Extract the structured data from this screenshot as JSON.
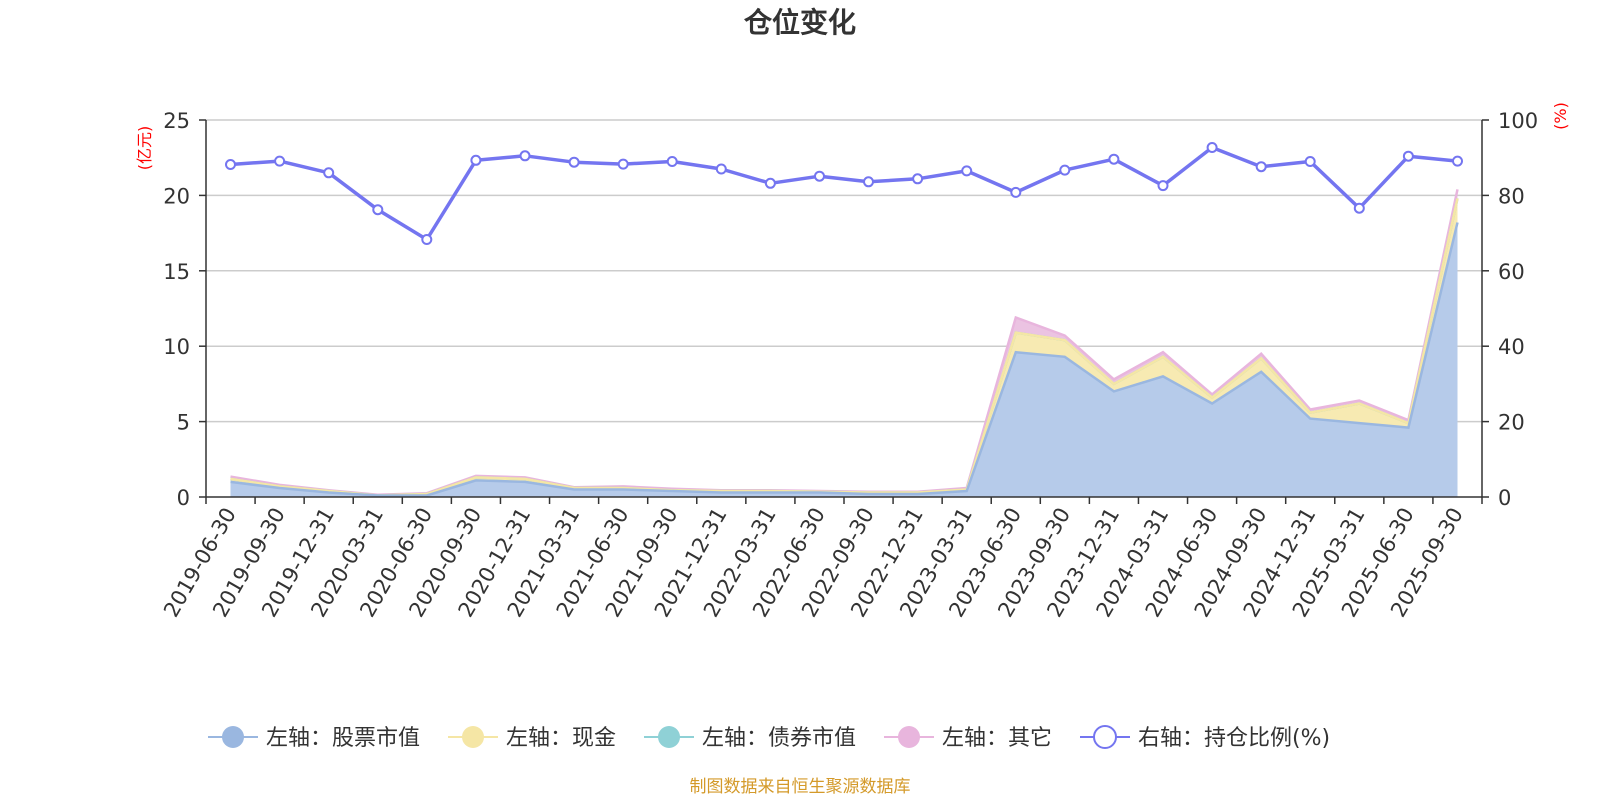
{
  "chart_data": {
    "type": "area",
    "title": "仓位变化",
    "left_unit": "(亿元)",
    "right_unit": "(%)",
    "left_ylim": [
      0,
      25
    ],
    "left_ticks": [
      "0",
      "5",
      "10",
      "15",
      "20",
      "25"
    ],
    "right_ylim": [
      0,
      100
    ],
    "right_ticks": [
      "0",
      "20",
      "40",
      "60",
      "80",
      "100"
    ],
    "grid": true,
    "legend_position": "bottom",
    "categories": [
      "2019-06-30",
      "2019-09-30",
      "2019-12-31",
      "2020-03-31",
      "2020-06-30",
      "2020-09-30",
      "2020-12-31",
      "2021-03-31",
      "2021-06-30",
      "2021-09-30",
      "2021-12-31",
      "2022-03-31",
      "2022-06-30",
      "2022-09-30",
      "2022-12-31",
      "2023-03-31",
      "2023-06-30",
      "2023-09-30",
      "2023-12-31",
      "2024-03-31",
      "2024-06-30",
      "2024-09-30",
      "2024-12-31",
      "2025-03-31",
      "2025-06-30",
      "2025-09-30"
    ],
    "series": [
      {
        "name": "左轴：股票市值",
        "axis": "left",
        "stack": true,
        "color": "#9ab7e0",
        "fill": "#b6cbea",
        "values": [
          1.0,
          0.6,
          0.3,
          0.1,
          0.1,
          1.1,
          1.0,
          0.5,
          0.5,
          0.4,
          0.3,
          0.3,
          0.3,
          0.2,
          0.2,
          0.4,
          9.6,
          9.3,
          7.0,
          8.0,
          6.2,
          8.3,
          5.2,
          4.9,
          4.6,
          18.2
        ]
      },
      {
        "name": "左轴：现金",
        "axis": "left",
        "stack": true,
        "color": "#f5e6a5",
        "fill": "#f7eab2",
        "values": [
          0.2,
          0.1,
          0.1,
          0.0,
          0.1,
          0.2,
          0.2,
          0.1,
          0.1,
          0.05,
          0.1,
          0.1,
          0.05,
          0.1,
          0.1,
          0.1,
          1.3,
          1.1,
          0.5,
          1.3,
          0.4,
          0.9,
          0.4,
          1.3,
          0.3,
          1.6
        ]
      },
      {
        "name": "左轴：债券市值",
        "axis": "left",
        "stack": true,
        "color": "#8fd1d6",
        "fill": "#a8dcdf",
        "values": [
          0,
          0,
          0,
          0,
          0,
          0,
          0,
          0,
          0,
          0,
          0,
          0,
          0,
          0,
          0,
          0,
          0,
          0,
          0,
          0,
          0,
          0,
          0,
          0,
          0,
          0
        ]
      },
      {
        "name": "左轴：其它",
        "axis": "left",
        "stack": true,
        "color": "#e8b5dd",
        "fill": "#ebc3e2",
        "values": [
          0.15,
          0.1,
          0.05,
          0.05,
          0.05,
          0.1,
          0.1,
          0.05,
          0.1,
          0.1,
          0.05,
          0.05,
          0.05,
          0.05,
          0.05,
          0.1,
          1.0,
          0.3,
          0.3,
          0.3,
          0.2,
          0.3,
          0.2,
          0.2,
          0.2,
          0.6
        ]
      },
      {
        "name": "右轴：持仓比例(%)",
        "axis": "right",
        "stack": false,
        "color": "#7475f0",
        "values": [
          88.2,
          89.1,
          86.0,
          76.2,
          68.3,
          89.3,
          90.5,
          88.8,
          88.3,
          89.0,
          87.0,
          83.2,
          85.1,
          83.6,
          84.4,
          86.5,
          80.8,
          86.7,
          89.6,
          82.6,
          92.7,
          87.6,
          89.0,
          76.6,
          90.4,
          89.1
        ]
      }
    ]
  },
  "legend": [
    {
      "label": "左轴：股票市值",
      "color": "#9ab7e0",
      "hollow": false
    },
    {
      "label": "左轴：现金",
      "color": "#f5e6a5",
      "hollow": false
    },
    {
      "label": "左轴：债券市值",
      "color": "#8fd1d6",
      "hollow": false
    },
    {
      "label": "左轴：其它",
      "color": "#e8b5dd",
      "hollow": false
    },
    {
      "label": "右轴：持仓比例(%)",
      "color": "#7475f0",
      "hollow": true
    }
  ],
  "source_note": "制图数据来自恒生聚源数据库"
}
